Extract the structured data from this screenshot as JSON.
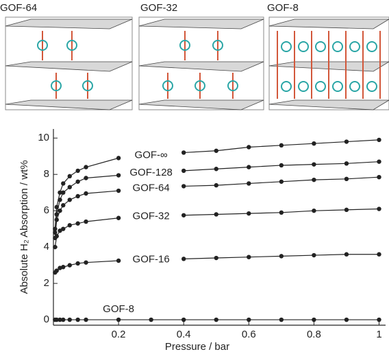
{
  "structure_panels": {
    "labels": [
      "GOF-64",
      "GOF-32",
      "GOF-8"
    ]
  },
  "chart_data": {
    "type": "line",
    "x_label": "Pressure / bar",
    "y_label": "Absolute H₂ Absorption / wt%",
    "x": [
      0.005,
      0.01,
      0.02,
      0.03,
      0.05,
      0.075,
      0.1,
      0.2,
      0.3,
      0.4,
      0.5,
      0.6,
      0.7,
      0.8,
      0.9,
      1.0
    ],
    "series": [
      {
        "name": "GOF-∞",
        "color": "#222222",
        "values": [
          5.0,
          6.2,
          7.0,
          7.5,
          7.9,
          8.2,
          8.4,
          8.9,
          null,
          9.2,
          9.3,
          9.5,
          9.6,
          9.7,
          9.8,
          9.9
        ]
      },
      {
        "name": "GOF-128",
        "color": "#222222",
        "values": [
          4.8,
          5.8,
          6.6,
          7.0,
          7.3,
          7.6,
          7.8,
          7.95,
          null,
          8.2,
          8.3,
          8.4,
          8.5,
          8.55,
          8.6,
          8.7
        ]
      },
      {
        "name": "GOF-64",
        "color": "#222222",
        "values": [
          4.5,
          5.5,
          6.0,
          6.3,
          6.6,
          6.8,
          6.95,
          7.1,
          null,
          7.35,
          7.4,
          7.5,
          7.6,
          7.7,
          7.75,
          7.85
        ]
      },
      {
        "name": "GOF-32",
        "color": "#222222",
        "values": [
          4.0,
          4.6,
          4.9,
          5.0,
          5.2,
          5.3,
          5.4,
          5.6,
          null,
          5.75,
          5.8,
          5.85,
          5.9,
          6.0,
          6.05,
          6.1
        ]
      },
      {
        "name": "GOF-16",
        "color": "#222222",
        "values": [
          2.6,
          2.7,
          2.85,
          2.9,
          3.0,
          3.1,
          3.15,
          3.25,
          null,
          3.35,
          3.4,
          3.45,
          3.5,
          3.55,
          3.6,
          3.6
        ]
      },
      {
        "name": "GOF-8",
        "color": "#222222",
        "values": [
          0,
          0,
          0,
          0,
          0,
          0,
          0,
          0,
          0,
          0,
          0,
          0,
          0,
          0,
          0,
          0
        ]
      }
    ],
    "xlim": [
      0,
      1.02
    ],
    "ylim": [
      -0.3,
      10.5
    ],
    "xticks": [
      0.2,
      0.4,
      0.6,
      0.8,
      1
    ],
    "yticks": [
      0,
      2,
      4,
      6,
      8,
      10
    ]
  }
}
